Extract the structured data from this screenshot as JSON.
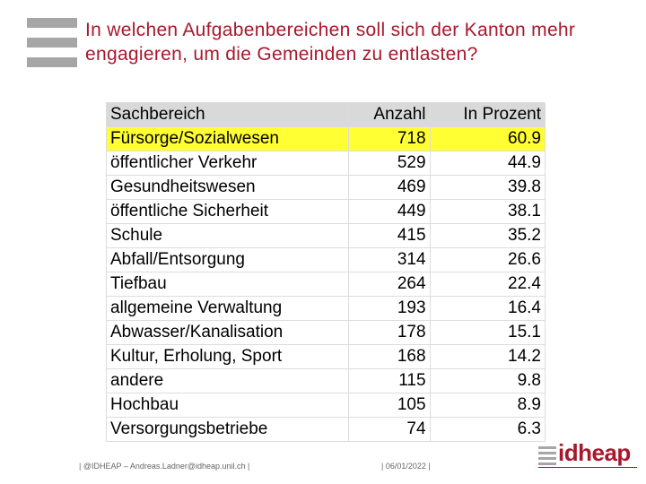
{
  "header": {
    "title": "In welchen Aufgabenbereichen soll sich der Kanton mehr engagieren, um die Gemeinden zu entlasten?"
  },
  "table": {
    "columns": [
      "Sachbereich",
      "Anzahl",
      "In Prozent"
    ],
    "rows": [
      [
        "Fürsorge/Sozialwesen",
        718,
        60.9
      ],
      [
        "öffentlicher Verkehr",
        529,
        44.9
      ],
      [
        "Gesundheitswesen",
        469,
        39.8
      ],
      [
        "öffentliche Sicherheit",
        449,
        38.1
      ],
      [
        "Schule",
        415,
        35.2
      ],
      [
        "Abfall/Entsorgung",
        314,
        26.6
      ],
      [
        "Tiefbau",
        264,
        22.4
      ],
      [
        "allgemeine Verwaltung",
        193,
        16.4
      ],
      [
        "Abwasser/Kanalisation",
        178,
        15.1
      ],
      [
        "Kultur, Erholung, Sport",
        168,
        14.2
      ],
      [
        "andere",
        115,
        9.8
      ],
      [
        "Hochbau",
        105,
        8.9
      ],
      [
        "Versorgungsbetriebe",
        74,
        6.3
      ]
    ]
  },
  "footer": {
    "author": "| @IDHEAP – Andreas.Ladner@idheap.unil.ch |",
    "date": "| 06/01/2022 |",
    "logo": "idheap"
  }
}
